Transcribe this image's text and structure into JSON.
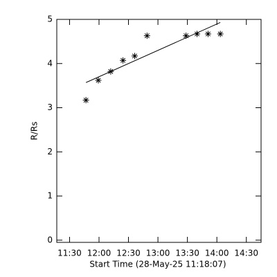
{
  "chart_data": {
    "type": "scatter",
    "x_label": "Start Time (28-May-25 11:18:07)",
    "y_label": "R/Rs",
    "x": [
      706.7,
      719.3,
      731.9,
      744.4,
      756.3,
      768.9,
      808.6,
      819.8,
      831.0,
      843.5
    ],
    "values": [
      3.17,
      3.62,
      3.82,
      4.07,
      4.17,
      4.63,
      4.63,
      4.67,
      4.67,
      4.67
    ],
    "color": "#000000",
    "fit": {
      "x": [
        706.7,
        843.5
      ],
      "values": [
        3.57,
        4.93
      ]
    },
    "xlim": [
      677,
      885
    ],
    "ylim": [
      -0.05,
      5
    ],
    "xticks": [
      {
        "value": 690,
        "label": "11:30"
      },
      {
        "value": 720,
        "label": "12:00"
      },
      {
        "value": 750,
        "label": "12:30"
      },
      {
        "value": 780,
        "label": "13:00"
      },
      {
        "value": 810,
        "label": "13:30"
      },
      {
        "value": 840,
        "label": "14:00"
      },
      {
        "value": 870,
        "label": "14:30"
      }
    ],
    "yticks": [
      0,
      1,
      2,
      3,
      4,
      5
    ],
    "grid": false
  }
}
